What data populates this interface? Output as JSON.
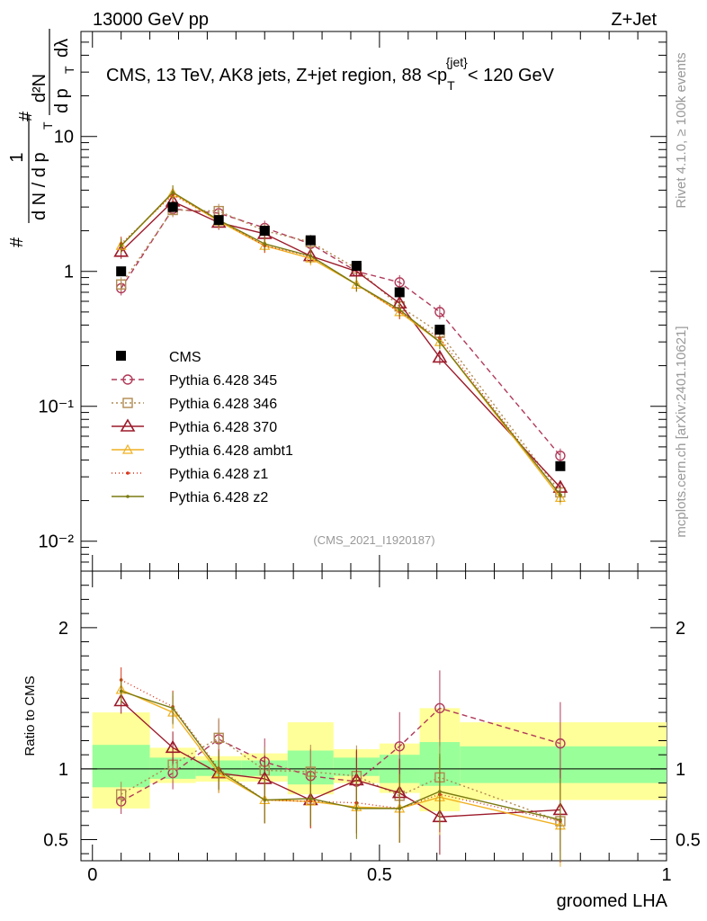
{
  "header": {
    "energy_label": "13000 GeV pp",
    "process_label": "Z+Jet"
  },
  "side_labels": {
    "rivet": "Rivet 4.1.0, ≥ 100k events",
    "source": "mcplots.cern.ch [arXiv:2401.10621]"
  },
  "chart_data": [
    {
      "type": "line",
      "panel": "main",
      "title": "CMS, 13 TeV, AK8 jets, Z+jet region, 88 <p_T^{jet}< 120 GeV",
      "title_parts": {
        "main": "CMS, 13 TeV, AK8 jets, Z+jet region, 88 <p",
        "sub": "T",
        "sup": "{jet}",
        "tail": "< 120 GeV"
      },
      "ylabel": "1/dN/dpT  dN²/dpT dλ",
      "ylabel_parts": {
        "hash": "#",
        "one": "1",
        "dn": "d N / d p",
        "t": "T",
        "d2n": "d²N",
        "dpt": "d p",
        "dl": "dλ"
      },
      "yscale": "log",
      "ylim": [
        0.006,
        60
      ],
      "xlim": [
        -0.02,
        1.0
      ],
      "y_tick_labels": [
        "10",
        "1",
        "10⁻¹",
        "10⁻²"
      ],
      "analysis_id": "(CMS_2021_I1920187)",
      "x": [
        0.05,
        0.14,
        0.22,
        0.3,
        0.38,
        0.46,
        0.535,
        0.605,
        0.815
      ],
      "data": {
        "name": "CMS",
        "values": [
          1.0,
          3.0,
          2.4,
          2.0,
          1.7,
          1.1,
          0.7,
          0.37,
          0.036
        ]
      },
      "series": [
        {
          "name": "Pythia 6.428 345",
          "color": "#b03a5a",
          "dash": "6,4",
          "marker": "circle",
          "values": [
            0.75,
            2.9,
            2.7,
            2.1,
            1.6,
            1.0,
            0.83,
            0.5,
            0.043
          ]
        },
        {
          "name": "Pythia 6.428 346",
          "color": "#b08a50",
          "dash": "2,3",
          "marker": "square",
          "values": [
            0.8,
            2.85,
            2.8,
            2.0,
            1.65,
            1.05,
            0.55,
            0.35,
            0.023
          ]
        },
        {
          "name": "Pythia 6.428 370",
          "color": "#9c1a2a",
          "dash": "",
          "marker": "triangle",
          "values": [
            1.4,
            3.3,
            2.3,
            1.9,
            1.3,
            1.0,
            0.58,
            0.23,
            0.025
          ]
        },
        {
          "name": "Pythia 6.428 ambt1",
          "color": "#f0b020",
          "dash": "",
          "marker": "triangle-small",
          "values": [
            1.55,
            3.8,
            2.35,
            1.55,
            1.25,
            0.8,
            0.5,
            0.3,
            0.021
          ]
        },
        {
          "name": "Pythia 6.428 z1",
          "color": "#d8341a",
          "dash": "1,3",
          "marker": "dot",
          "values": [
            1.6,
            3.7,
            2.4,
            1.55,
            1.3,
            0.8,
            0.5,
            0.32,
            0.022
          ]
        },
        {
          "name": "Pythia 6.428 z2",
          "color": "#7a7a12",
          "dash": "",
          "marker": "dot",
          "values": [
            1.55,
            3.85,
            2.4,
            1.6,
            1.3,
            0.8,
            0.52,
            0.3,
            0.022
          ]
        }
      ]
    },
    {
      "type": "line",
      "panel": "ratio",
      "ylabel": "Ratio to CMS",
      "xlabel": "groomed LHA",
      "ylim": [
        0.35,
        2.4
      ],
      "xlim": [
        -0.02,
        1.0
      ],
      "y_tick_labels": [
        "2",
        "1",
        "0.5"
      ],
      "x_tick_labels": [
        "0",
        "0.5",
        "1"
      ],
      "band_edges": [
        0.0,
        0.1,
        0.18,
        0.26,
        0.34,
        0.42,
        0.5,
        0.57,
        0.64,
        1.0
      ],
      "band_green": [
        [
          0.87,
          1.17
        ],
        [
          0.93,
          1.08
        ],
        [
          0.95,
          1.06
        ],
        [
          0.95,
          1.06
        ],
        [
          0.89,
          1.13
        ],
        [
          0.95,
          1.08
        ],
        [
          0.9,
          1.1
        ],
        [
          0.88,
          1.19
        ],
        [
          0.9,
          1.16
        ]
      ],
      "band_yellow": [
        [
          0.72,
          1.4
        ],
        [
          0.9,
          1.15
        ],
        [
          0.91,
          1.09
        ],
        [
          0.91,
          1.11
        ],
        [
          0.82,
          1.33
        ],
        [
          0.9,
          1.14
        ],
        [
          0.83,
          1.18
        ],
        [
          0.7,
          1.43
        ],
        [
          0.78,
          1.33
        ]
      ],
      "x": [
        0.05,
        0.14,
        0.22,
        0.3,
        0.38,
        0.46,
        0.535,
        0.605,
        0.815
      ],
      "series": [
        {
          "name": "Pythia 6.428 345",
          "values": [
            0.77,
            0.97,
            1.21,
            1.05,
            0.95,
            0.91,
            1.16,
            1.43,
            1.18
          ]
        },
        {
          "name": "Pythia 6.428 346",
          "values": [
            0.82,
            1.03,
            1.22,
            0.99,
            0.98,
            0.95,
            0.81,
            0.94,
            0.63
          ]
        },
        {
          "name": "Pythia 6.428 370",
          "values": [
            1.48,
            1.15,
            0.97,
            0.93,
            0.78,
            0.92,
            0.83,
            0.66,
            0.71
          ]
        },
        {
          "name": "Pythia 6.428 ambt1",
          "values": [
            1.56,
            1.4,
            0.97,
            0.78,
            0.77,
            0.73,
            0.72,
            0.8,
            0.6
          ]
        },
        {
          "name": "Pythia 6.428 z1",
          "values": [
            1.63,
            1.44,
            1.0,
            0.78,
            0.77,
            0.76,
            0.72,
            0.82,
            0.63
          ]
        },
        {
          "name": "Pythia 6.428 z2",
          "values": [
            1.55,
            1.43,
            0.99,
            0.78,
            0.79,
            0.72,
            0.72,
            0.84,
            0.64
          ]
        }
      ]
    }
  ]
}
